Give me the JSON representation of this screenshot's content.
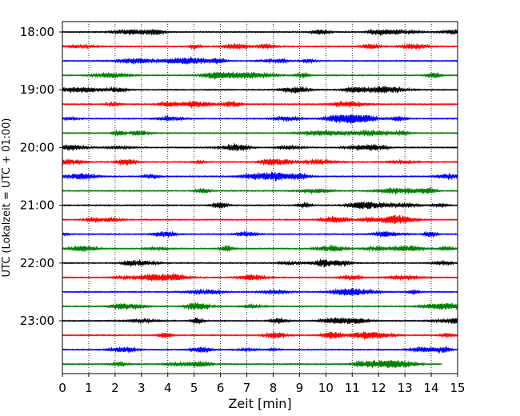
{
  "chart_data": {
    "type": "line",
    "title": "",
    "xlabel": "Zeit  [min]",
    "ylabel": "UTC (Lokalzeit = UTC + 01:00)",
    "xlim": [
      0,
      15
    ],
    "x_ticks": [
      "0",
      "1",
      "2",
      "3",
      "4",
      "5",
      "6",
      "7",
      "8",
      "9",
      "10",
      "11",
      "12",
      "13",
      "14",
      "15"
    ],
    "y_ticks": [
      {
        "label": "18:00",
        "row": 0
      },
      {
        "label": "19:00",
        "row": 4
      },
      {
        "label": "20:00",
        "row": 8
      },
      {
        "label": "21:00",
        "row": 12
      },
      {
        "label": "22:00",
        "row": 16
      },
      {
        "label": "23:00",
        "row": 20
      }
    ],
    "row_interval_minutes": 15,
    "row_count": 24,
    "color_cycle": [
      "#000000",
      "#ff0000",
      "#0000ff",
      "#007f00"
    ],
    "last_row_end_minutes": 14.4,
    "grid": "vertical-dotted"
  }
}
